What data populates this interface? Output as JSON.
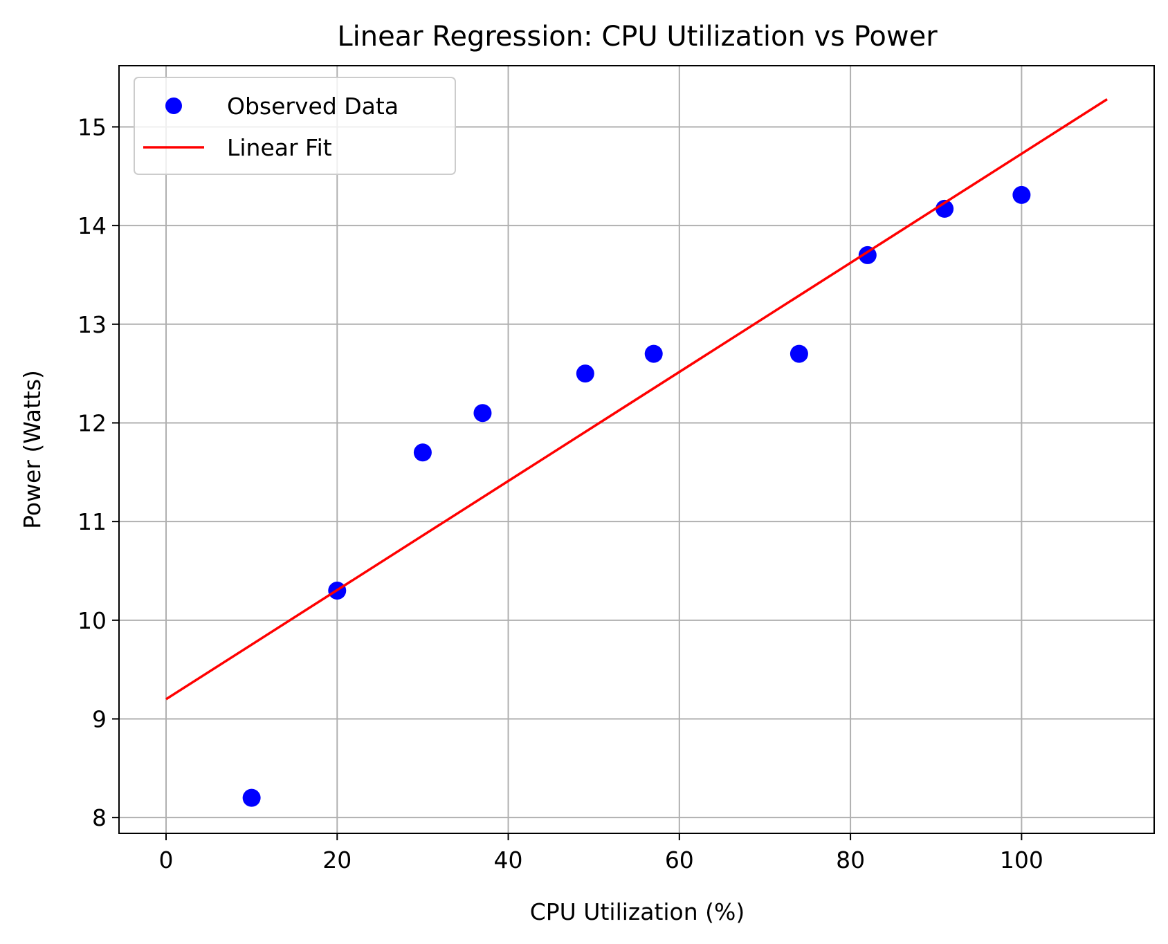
{
  "chart_data": {
    "type": "scatter",
    "title": "Linear Regression: CPU Utilization vs Power",
    "xlabel": "CPU Utilization (%)",
    "ylabel": "Power (Watts)",
    "xlim": [
      -5.5,
      115.5
    ],
    "ylim": [
      7.84,
      15.62
    ],
    "xticks": [
      0,
      20,
      40,
      60,
      80,
      100
    ],
    "yticks": [
      8,
      9,
      10,
      11,
      12,
      13,
      14,
      15
    ],
    "grid": true,
    "legend_position": "top-left",
    "series": [
      {
        "name": "Observed Data",
        "kind": "scatter",
        "color": "#0000ff",
        "x": [
          10,
          20,
          30,
          37,
          49,
          57,
          74,
          82,
          91,
          100
        ],
        "y": [
          8.2,
          10.3,
          11.7,
          12.1,
          12.5,
          12.7,
          12.7,
          13.7,
          14.17,
          14.31
        ]
      },
      {
        "name": "Linear Fit",
        "kind": "line",
        "color": "#ff0000",
        "x": [
          0,
          110
        ],
        "y": [
          9.2,
          15.28
        ]
      }
    ]
  },
  "style": {
    "grid_color": "#b0b0b0",
    "axis_color": "#000000"
  }
}
